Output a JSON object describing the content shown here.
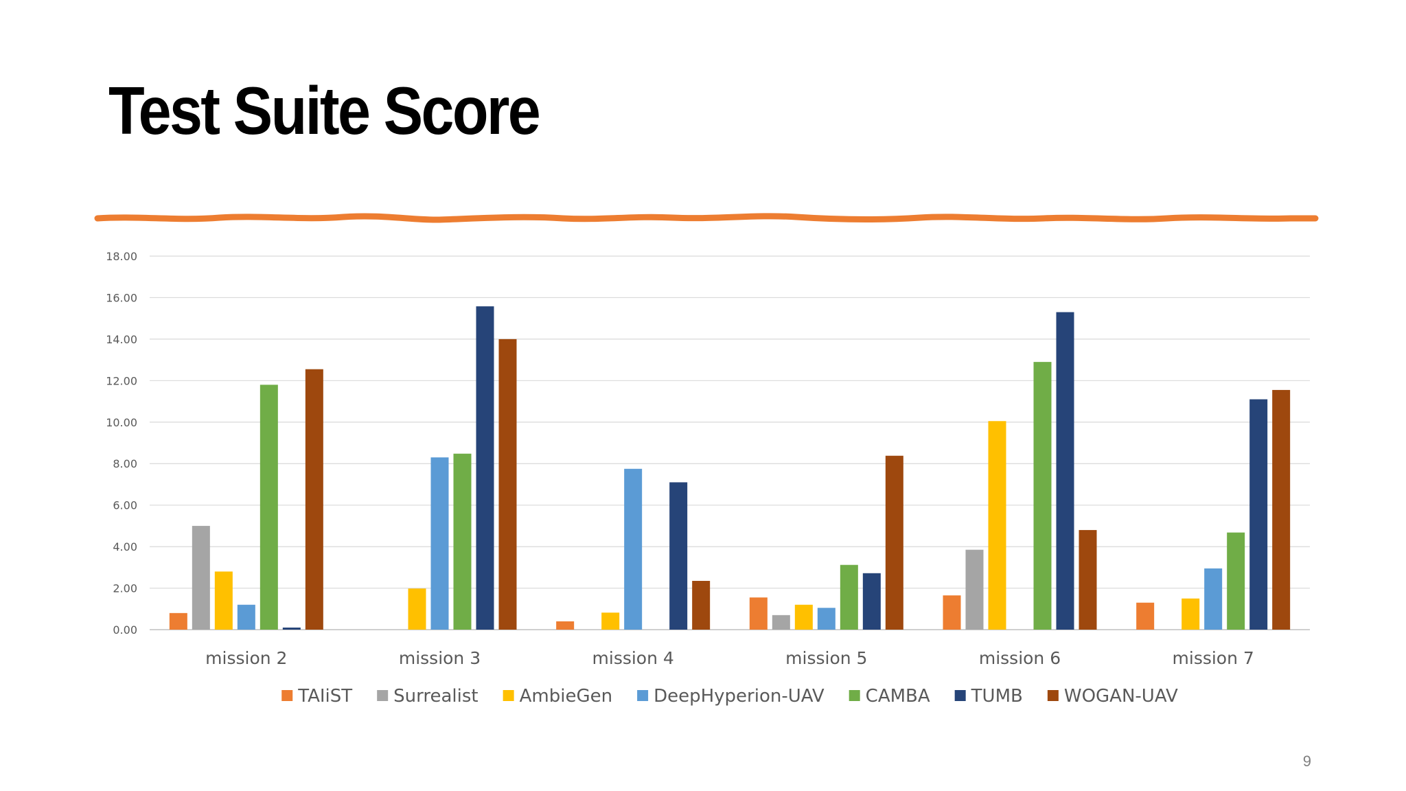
{
  "slide": {
    "title": "Test Suite Score",
    "page_number": "9",
    "accent_color": "#ED7D31"
  },
  "chart_data": {
    "type": "bar",
    "title": "",
    "xlabel": "",
    "ylabel": "",
    "ylim": [
      0,
      18
    ],
    "yticks": [
      "0.00",
      "2.00",
      "4.00",
      "6.00",
      "8.00",
      "10.00",
      "12.00",
      "14.00",
      "16.00",
      "18.00"
    ],
    "grid": true,
    "legend_position": "bottom",
    "categories": [
      "mission 2",
      "mission 3",
      "mission 4",
      "mission 5",
      "mission 6",
      "mission 7"
    ],
    "series": [
      {
        "name": "TAIiST",
        "color": "#ED7D31",
        "values": [
          0.8,
          0,
          0.4,
          1.55,
          1.65,
          1.3
        ]
      },
      {
        "name": "Surrealist",
        "color": "#A5A5A5",
        "values": [
          5.0,
          0,
          0,
          0.7,
          3.85,
          0
        ]
      },
      {
        "name": "AmbieGen",
        "color": "#FFC000",
        "values": [
          2.8,
          1.98,
          0.82,
          1.2,
          10.05,
          1.5
        ]
      },
      {
        "name": "DeepHyperion-UAV",
        "color": "#5B9BD5",
        "values": [
          1.2,
          8.3,
          7.75,
          1.05,
          0,
          2.95
        ]
      },
      {
        "name": "CAMBA",
        "color": "#70AD47",
        "values": [
          11.8,
          8.48,
          0,
          3.12,
          12.9,
          4.68
        ]
      },
      {
        "name": "TUMB",
        "color": "#264478",
        "values": [
          0.1,
          15.58,
          7.1,
          2.72,
          15.3,
          11.1
        ]
      },
      {
        "name": "WOGAN-UAV",
        "color": "#9E480E",
        "values": [
          12.55,
          14.0,
          2.35,
          8.38,
          4.8,
          11.55
        ]
      }
    ]
  }
}
